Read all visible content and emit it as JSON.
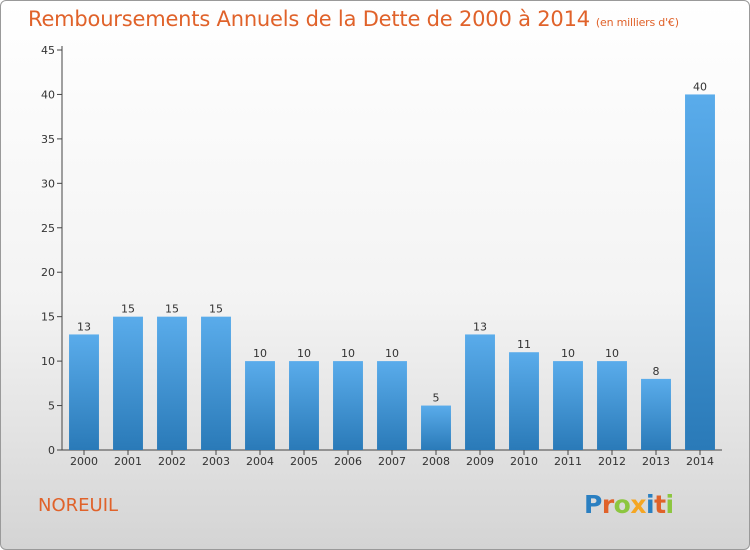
{
  "title": "Remboursements Annuels de la Dette de 2000 à 2014",
  "subtitle": "(en milliers d'€)",
  "town": "NOREUIL",
  "logo": {
    "text": "Proxiti",
    "letters": [
      {
        "ch": "P",
        "color": "#2a7fc1"
      },
      {
        "ch": "r",
        "color": "#e0622a"
      },
      {
        "ch": "o",
        "color": "#8cc63f"
      },
      {
        "ch": "x",
        "color": "#f5a623"
      },
      {
        "ch": "i",
        "color": "#2a7fc1"
      },
      {
        "ch": "t",
        "color": "#e0622a"
      },
      {
        "ch": "i",
        "color": "#8cc63f"
      }
    ]
  },
  "colors": {
    "bar_top": "#5aaceb",
    "bar_bottom": "#2a7ab8",
    "title": "#e0622a"
  },
  "chart_data": {
    "type": "bar",
    "title": "Remboursements Annuels de la Dette de 2000 à 2014",
    "subtitle": "(en milliers d'€)",
    "xlabel": "",
    "ylabel": "",
    "ylim": [
      0,
      45
    ],
    "yticks": [
      0,
      5,
      10,
      15,
      20,
      25,
      30,
      35,
      40,
      45
    ],
    "grid": false,
    "categories": [
      "2000",
      "2001",
      "2002",
      "2003",
      "2004",
      "2005",
      "2006",
      "2007",
      "2008",
      "2009",
      "2010",
      "2011",
      "2012",
      "2013",
      "2014"
    ],
    "values": [
      13,
      15,
      15,
      15,
      10,
      10,
      10,
      10,
      5,
      13,
      11,
      10,
      10,
      8,
      40
    ]
  }
}
